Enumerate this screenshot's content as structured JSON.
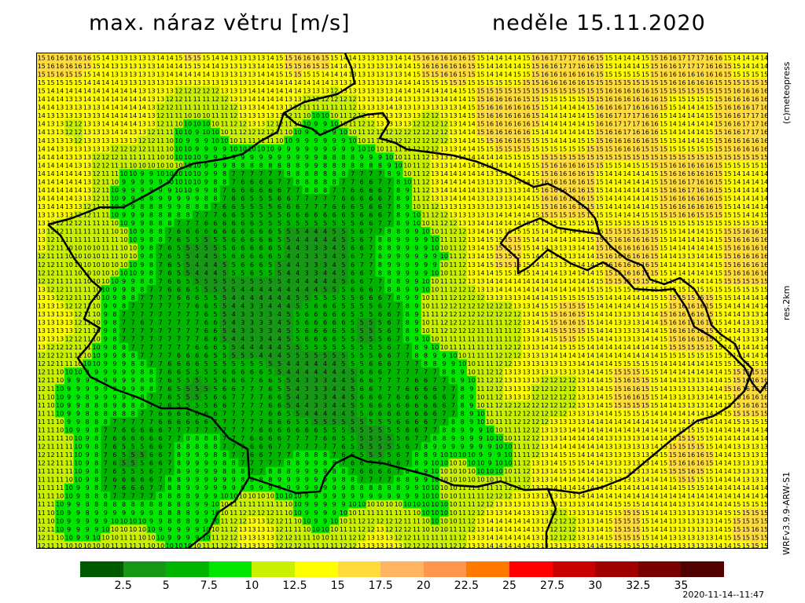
{
  "header": {
    "title": "max. náraz větru [m/s]",
    "date": "neděle 15.11.2020"
  },
  "side_labels": {
    "credit": "(c)meteopress",
    "resolution": "res.2km",
    "model": "WRFv3.9.9-ARW-S1"
  },
  "legend": {
    "colors": [
      "#005a00",
      "#169816",
      "#00b400",
      "#00e600",
      "#c8f000",
      "#ffff00",
      "#ffdc3c",
      "#ffb464",
      "#ff9650",
      "#ff7800",
      "#ff0000",
      "#c80000",
      "#a00000",
      "#780000",
      "#500000"
    ],
    "labels": [
      "2.5",
      "5",
      "7.5",
      "10",
      "12.5",
      "15",
      "17.5",
      "20",
      "22.5",
      "25",
      "27.5",
      "30",
      "32.5",
      "35"
    ]
  },
  "timestamp": "2020-11-14--11:47",
  "map": {
    "grid_cols": 80,
    "grid_rows": 60,
    "border_color": "#000000"
  }
}
